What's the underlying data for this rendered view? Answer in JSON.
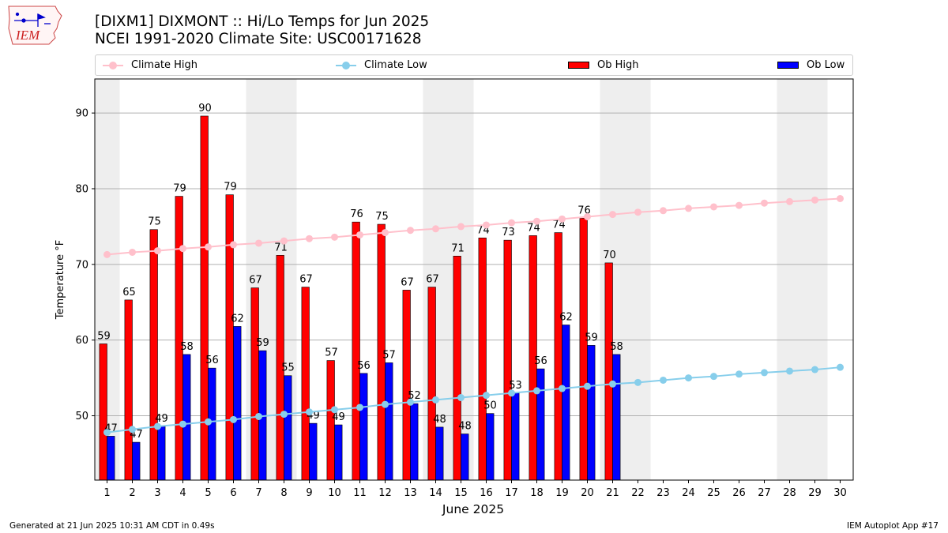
{
  "header": {
    "logo_text": "IEM",
    "title_line1": "[DIXM1] DIXMONT :: Hi/Lo Temps for Jun 2025",
    "title_line2": "NCEI 1991-2020 Climate Site: USC00171628"
  },
  "legend": {
    "climate_high": "Climate High",
    "climate_low": "Climate Low",
    "ob_high": "Ob High",
    "ob_low": "Ob Low"
  },
  "colors": {
    "climate_high": "#ffc0cb",
    "climate_low": "#87ceeb",
    "ob_high": "#ff0000",
    "ob_low": "#0000ff",
    "weekend_band": "#eeeeee",
    "grid": "#b0b0b0"
  },
  "chart_data": {
    "type": "bar",
    "xlabel": "June 2025",
    "ylabel": "Temperature °F",
    "ylim": [
      41.5,
      94.5
    ],
    "yticks": [
      50,
      60,
      70,
      80,
      90
    ],
    "grid": "horizontal",
    "legend_position": "top",
    "weekend_days": [
      1,
      7,
      8,
      14,
      15,
      21,
      22,
      28,
      29
    ],
    "days": [
      1,
      2,
      3,
      4,
      5,
      6,
      7,
      8,
      9,
      10,
      11,
      12,
      13,
      14,
      15,
      16,
      17,
      18,
      19,
      20,
      21,
      22,
      23,
      24,
      25,
      26,
      27,
      28,
      29,
      30
    ],
    "series": [
      {
        "name": "Ob High",
        "kind": "bar",
        "values": [
          59.5,
          65.3,
          74.6,
          79.0,
          89.6,
          79.2,
          66.9,
          71.2,
          67.0,
          57.3,
          75.6,
          75.3,
          66.6,
          67.0,
          71.1,
          73.5,
          73.2,
          73.8,
          74.2,
          76.1,
          70.2
        ]
      },
      {
        "name": "Ob Low",
        "kind": "bar",
        "values": [
          47.3,
          46.5,
          48.6,
          58.1,
          56.3,
          61.8,
          58.6,
          55.3,
          49.0,
          48.8,
          55.6,
          57.0,
          51.6,
          48.5,
          47.6,
          50.3,
          53.0,
          56.2,
          62.0,
          59.3,
          58.1
        ]
      },
      {
        "name": "Climate High",
        "kind": "line",
        "values": [
          71.3,
          71.6,
          71.8,
          72.1,
          72.3,
          72.6,
          72.8,
          73.1,
          73.4,
          73.6,
          73.9,
          74.2,
          74.5,
          74.7,
          75.0,
          75.2,
          75.5,
          75.7,
          76.0,
          76.3,
          76.6,
          76.9,
          77.1,
          77.4,
          77.6,
          77.8,
          78.1,
          78.3,
          78.5,
          78.7
        ]
      },
      {
        "name": "Climate Low",
        "kind": "line",
        "values": [
          47.8,
          48.2,
          48.6,
          48.9,
          49.2,
          49.5,
          49.9,
          50.2,
          50.5,
          50.8,
          51.1,
          51.5,
          51.8,
          52.1,
          52.4,
          52.7,
          53.0,
          53.3,
          53.6,
          53.9,
          54.2,
          54.4,
          54.7,
          55.0,
          55.2,
          55.5,
          55.7,
          55.9,
          56.1,
          56.4
        ]
      }
    ],
    "high_labels": [
      "59",
      "65",
      "75",
      "79",
      "90",
      "79",
      "67",
      "71",
      "67",
      "57",
      "76",
      "75",
      "67",
      "67",
      "71",
      "74",
      "73",
      "74",
      "74",
      "76",
      "70"
    ],
    "low_labels": [
      "47",
      "47",
      "49",
      "58",
      "56",
      "62",
      "59",
      "55",
      "49",
      "49",
      "56",
      "57",
      "52",
      "48",
      "48",
      "50",
      "53",
      "56",
      "62",
      "59",
      "58"
    ]
  },
  "footer": {
    "generated": "Generated at 21 Jun 2025 10:31 AM CDT in 0.49s",
    "app": "IEM Autoplot App #17"
  }
}
